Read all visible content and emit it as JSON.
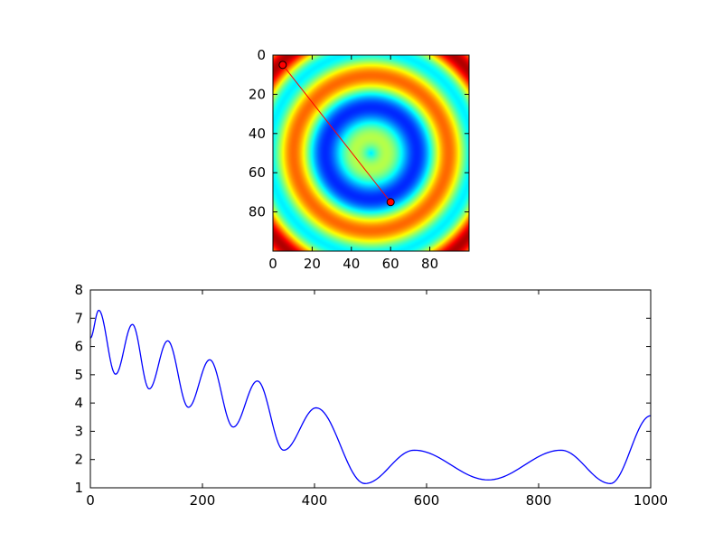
{
  "chart_data": [
    {
      "type": "heatmap",
      "title": "",
      "xlabel": "",
      "ylabel": "",
      "colormap": "jet",
      "grid_size": [
        100,
        100
      ],
      "center": [
        50,
        50
      ],
      "xlim": [
        0,
        100
      ],
      "ylim": [
        100,
        0
      ],
      "x_ticks": [
        0,
        20,
        40,
        60,
        80
      ],
      "y_ticks": [
        0,
        20,
        40,
        60,
        80
      ],
      "grid": false,
      "overlay_line": {
        "color": "#ff0000",
        "points": [
          {
            "x": 5,
            "y": 5
          },
          {
            "x": 60,
            "y": 75
          }
        ]
      }
    },
    {
      "type": "line",
      "title": "",
      "xlabel": "",
      "ylabel": "",
      "xlim": [
        0,
        1000
      ],
      "ylim": [
        1,
        8
      ],
      "x_ticks": [
        0,
        200,
        400,
        600,
        800,
        1000
      ],
      "y_ticks": [
        1,
        2,
        3,
        4,
        5,
        6,
        7,
        8
      ],
      "grid": false,
      "series": [
        {
          "color": "#0000ff",
          "points": [
            [
              0,
              6.3
            ],
            [
              15,
              7.28
            ],
            [
              45,
              5.02
            ],
            [
              75,
              6.78
            ],
            [
              105,
              4.5
            ],
            [
              138,
              6.2
            ],
            [
              175,
              3.85
            ],
            [
              213,
              5.53
            ],
            [
              255,
              3.15
            ],
            [
              298,
              4.78
            ],
            [
              345,
              2.33
            ],
            [
              403,
              3.83
            ],
            [
              490,
              1.15
            ],
            [
              578,
              2.33
            ],
            [
              710,
              1.28
            ],
            [
              840,
              2.33
            ],
            [
              928,
              1.15
            ],
            [
              1000,
              3.55
            ]
          ]
        }
      ]
    }
  ]
}
